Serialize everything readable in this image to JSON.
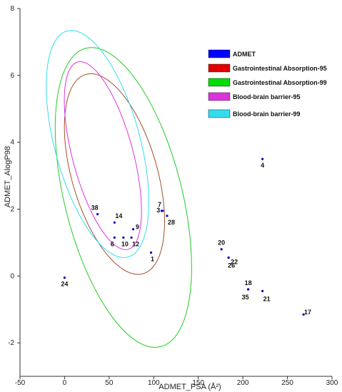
{
  "chart_data": {
    "type": "scatter",
    "xlabel": "ADMET_PSA (Å²)",
    "ylabel": "ADMET_AlogP98",
    "xlim": [
      -50,
      300
    ],
    "ylim": [
      -3,
      8
    ],
    "xticks": [
      "-50",
      "0",
      "50",
      "100",
      "150",
      "200",
      "250",
      "300"
    ],
    "yticks": [
      "-2",
      "0",
      "2",
      "4",
      "6",
      "8"
    ],
    "grid": false,
    "legend_position": "top-right",
    "legend": [
      {
        "label": "ADMET",
        "color": "#0000ff"
      },
      {
        "label": "Gastrointestinal Absorption-95",
        "color": "#e00000"
      },
      {
        "label": "Gastrointestinal Absorption-99",
        "color": "#00dd00"
      },
      {
        "label": "Blood-brain barrier-95",
        "color": "#dd33dd"
      },
      {
        "label": "Blood-brain barrier-99",
        "color": "#33ddee"
      }
    ],
    "ellipses": [
      {
        "name": "Gastrointestinal Absorption-95",
        "color": "#a0522d",
        "cx": 56,
        "cy": 3.05,
        "rx": 48,
        "ry": 3.1,
        "angle": -16
      },
      {
        "name": "Gastrointestinal Absorption-99",
        "color": "#22cc22",
        "cx": 66,
        "cy": 2.35,
        "rx": 66,
        "ry": 4.6,
        "angle": -14
      },
      {
        "name": "Blood-brain barrier-95",
        "color": "#dd33dd",
        "cx": 43,
        "cy": 3.6,
        "rx": 34,
        "ry": 2.9,
        "angle": -15
      },
      {
        "name": "Blood-brain barrier-99",
        "color": "#33ddee",
        "cx": 37,
        "cy": 3.95,
        "rx": 48,
        "ry": 3.5,
        "angle": -15
      }
    ],
    "points": [
      {
        "label": "1",
        "x": 97,
        "y": 0.7
      },
      {
        "label": "3",
        "x": 110,
        "y": 1.95
      },
      {
        "label": "4",
        "x": 222,
        "y": 3.5
      },
      {
        "label": "6",
        "x": 56,
        "y": 1.15
      },
      {
        "label": "7",
        "x": 109,
        "y": 1.95
      },
      {
        "label": "9",
        "x": 77,
        "y": 1.4
      },
      {
        "label": "10",
        "x": 66,
        "y": 1.15
      },
      {
        "label": "12",
        "x": 75,
        "y": 1.15
      },
      {
        "label": "14",
        "x": 56,
        "y": 1.6
      },
      {
        "label": "17",
        "x": 268,
        "y": -1.15
      },
      {
        "label": "18",
        "x": 206,
        "y": -0.4
      },
      {
        "label": "20",
        "x": 176,
        "y": 0.8
      },
      {
        "label": "21",
        "x": 222,
        "y": -0.45
      },
      {
        "label": "22",
        "x": 184,
        "y": 0.55
      },
      {
        "label": "24",
        "x": 0,
        "y": -0.05
      },
      {
        "label": "26",
        "x": 184,
        "y": 0.55
      },
      {
        "label": "28",
        "x": 115,
        "y": 1.8
      },
      {
        "label": "35",
        "x": 206,
        "y": -0.4
      },
      {
        "label": "38",
        "x": 37,
        "y": 1.85
      }
    ]
  }
}
